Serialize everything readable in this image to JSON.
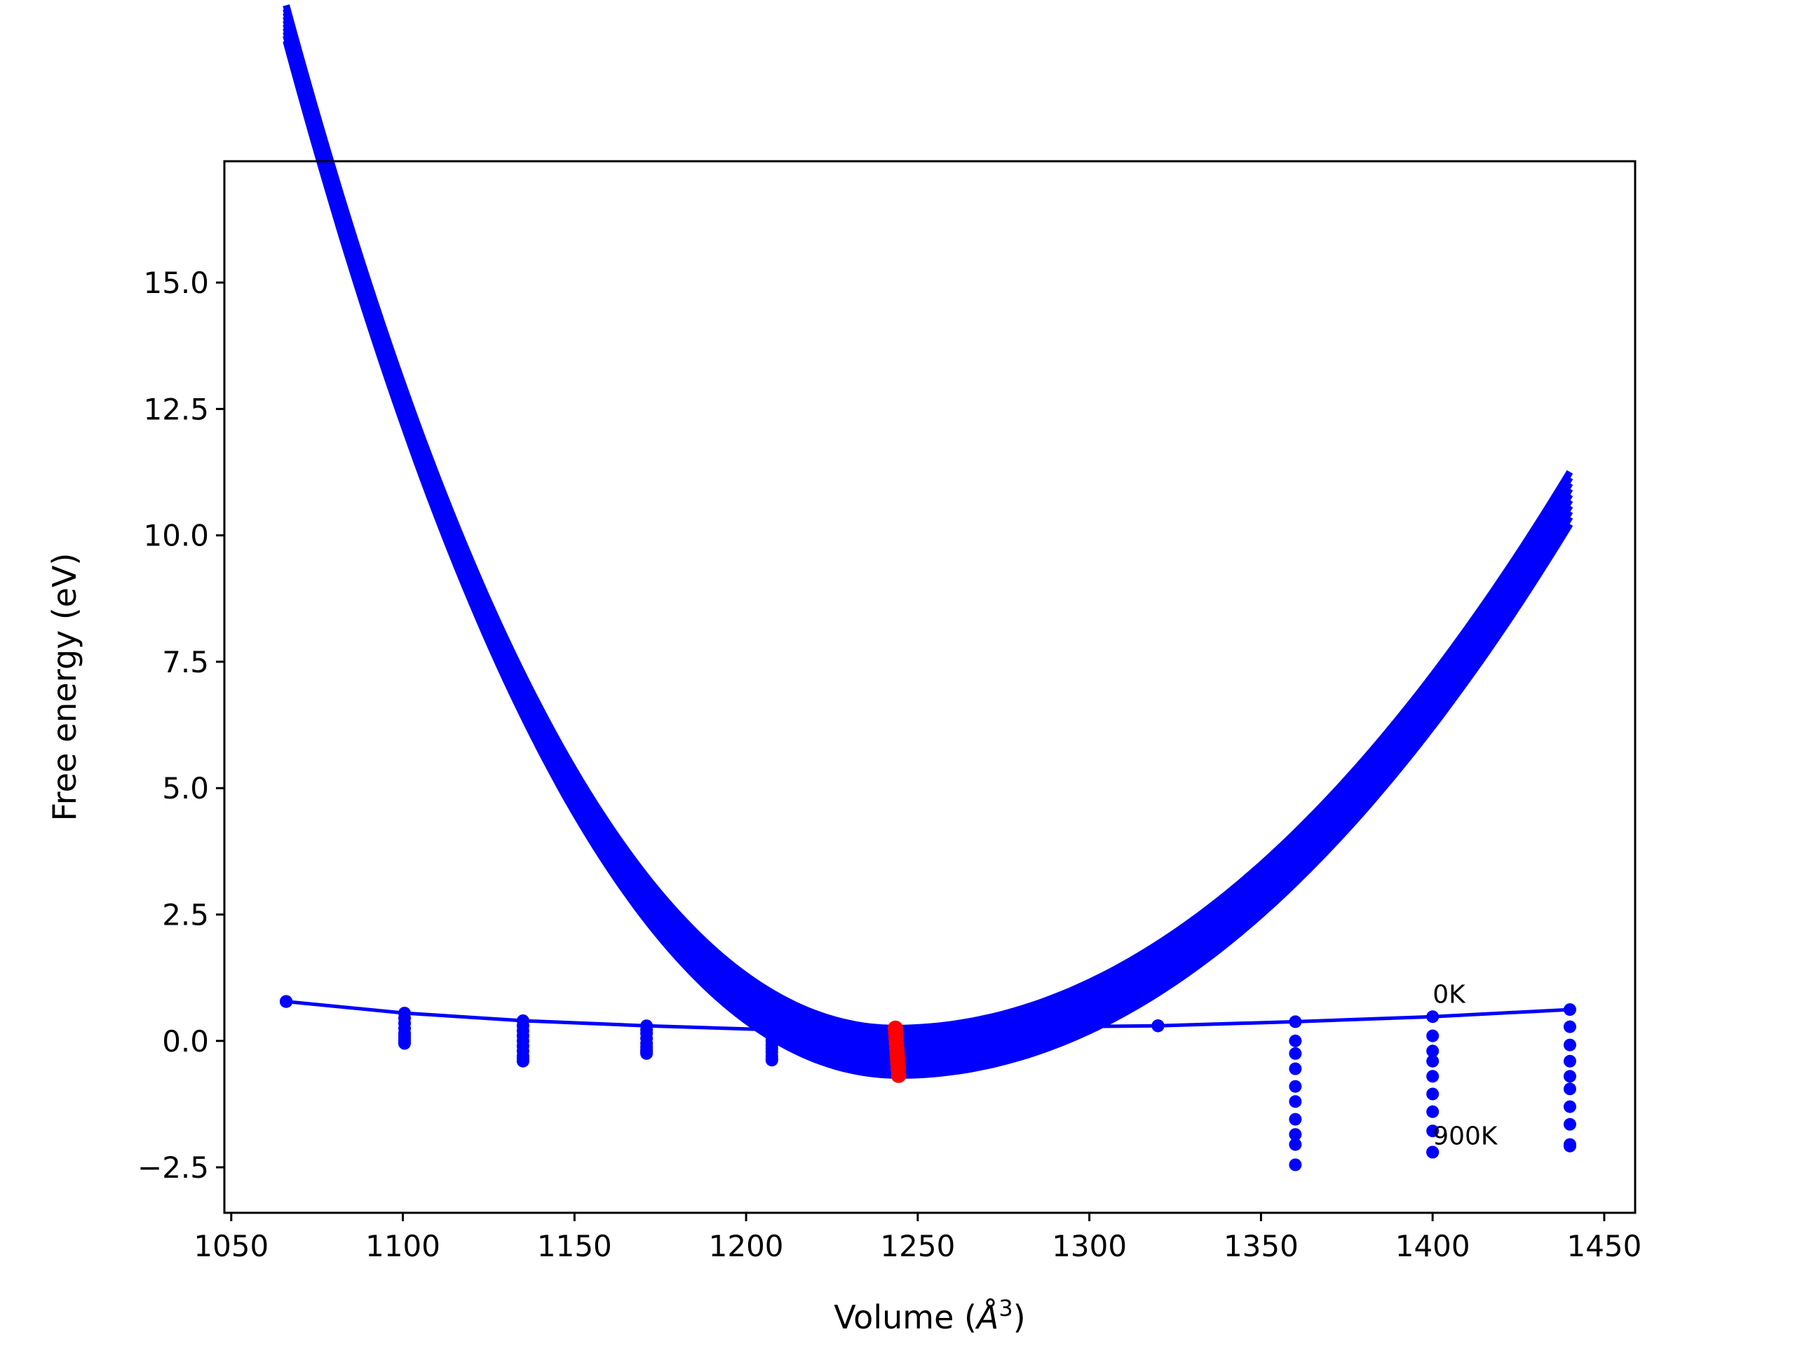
{
  "chart_data": {
    "type": "line",
    "title": "",
    "xlabel": "Volume (",
    "xlabel_unit_base": "Å",
    "xlabel_unit_exp": "3",
    "xlabel_close": ")",
    "ylabel": "Free energy (eV)",
    "xlim": [
      1048,
      1459
    ],
    "ylim": [
      -3.4,
      17.4
    ],
    "xticks": [
      1050,
      1100,
      1150,
      1200,
      1250,
      1300,
      1350,
      1400,
      1450
    ],
    "yticks": [
      -2.5,
      0.0,
      2.5,
      5.0,
      7.5,
      10.0,
      12.5,
      15.0
    ],
    "ytick_labels": [
      "−2.5",
      "0.0",
      "2.5",
      "5.0",
      "7.5",
      "10.0",
      "12.5",
      "15.0"
    ],
    "grid": false,
    "colors": {
      "curves": "#0000ff",
      "minima": "#ff0000"
    },
    "temperatures_count": 10,
    "x": [
      1066,
      1100.5,
      1135,
      1171,
      1207.5,
      1320,
      1360,
      1400,
      1440
    ],
    "series": [
      {
        "values": [
          0.78,
          0.55,
          0.4,
          0.3,
          0.22,
          0.3,
          0.38,
          0.48,
          0.62
        ]
      },
      {
        "values": [
          0.78,
          0.45,
          0.3,
          0.22,
          0.15,
          0.3,
          0.0,
          0.1,
          0.28
        ]
      },
      {
        "values": [
          0.78,
          0.35,
          0.2,
          0.15,
          0.08,
          0.3,
          -0.25,
          -0.2,
          -0.08
        ]
      },
      {
        "values": [
          0.78,
          0.25,
          0.1,
          0.05,
          0.0,
          0.3,
          -0.55,
          -0.4,
          -0.4
        ]
      },
      {
        "values": [
          0.78,
          0.15,
          0.0,
          -0.05,
          -0.08,
          0.3,
          -0.9,
          -0.7,
          -0.7
        ]
      },
      {
        "values": [
          0.78,
          0.1,
          -0.1,
          -0.12,
          -0.15,
          0.3,
          -1.2,
          -1.05,
          -0.95
        ]
      },
      {
        "values": [
          0.78,
          0.05,
          -0.2,
          -0.18,
          -0.22,
          0.3,
          -1.55,
          -1.4,
          -1.3
        ]
      },
      {
        "values": [
          0.78,
          0.0,
          -0.3,
          -0.2,
          -0.3,
          0.3,
          -1.85,
          -1.78,
          -1.65
        ]
      },
      {
        "values": [
          0.78,
          -0.02,
          -0.35,
          -0.22,
          -0.35,
          0.3,
          -2.05,
          -2.2,
          -2.05
        ]
      },
      {
        "values": [
          0.78,
          -0.05,
          -0.4,
          -0.25,
          -0.38,
          0.3,
          -2.45,
          -2.2,
          -2.08
        ]
      }
    ],
    "fit_curves": {
      "x_range": [
        1066,
        1440
      ],
      "v0": [
        1243.5,
        1243.6,
        1243.7,
        1243.8,
        1243.9,
        1244.0,
        1244.1,
        1244.2,
        1244.3,
        1244.4
      ],
      "e0": [
        0.25,
        0.15,
        0.05,
        -0.05,
        -0.15,
        -0.25,
        -0.35,
        -0.45,
        -0.55,
        -0.68
      ]
    },
    "annotations": [
      {
        "text": "0K",
        "x": 1400,
        "y": 0.75
      },
      {
        "text": "900K",
        "x": 1400,
        "y": -2.05
      }
    ]
  }
}
